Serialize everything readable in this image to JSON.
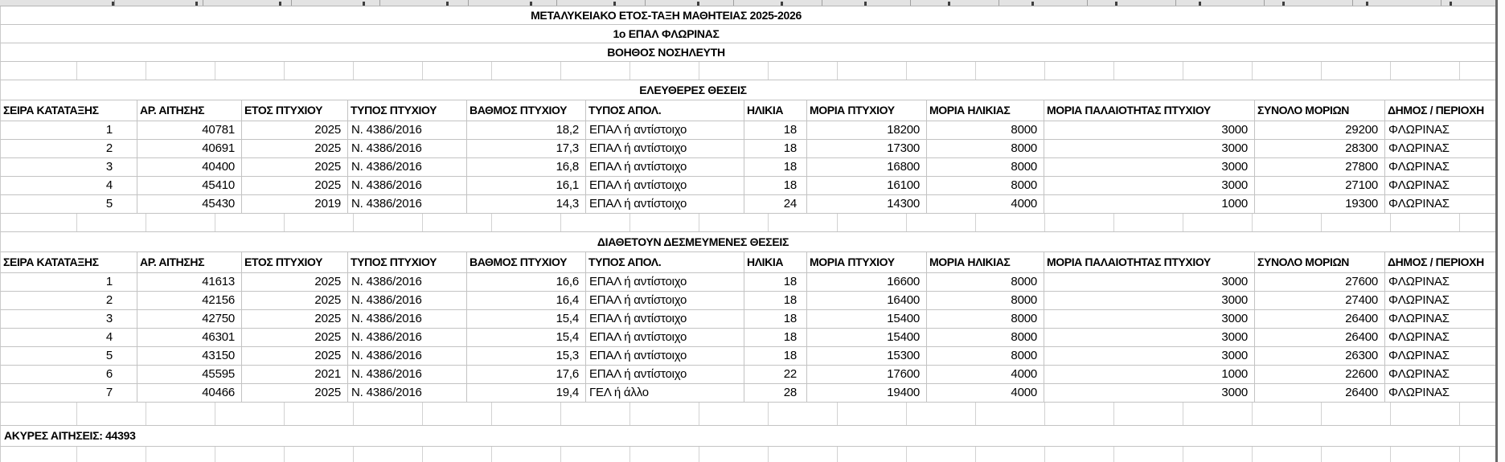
{
  "header": {
    "line1": "ΜΕΤΑΛΥΚΕΙΑΚΟ ΕΤΟΣ-ΤΑΞΗ ΜΑΘΗΤΕΙΑΣ 2025-2026",
    "line2": "1ο ΕΠΑΛ ΦΛΩΡΙΝΑΣ",
    "line3": "ΒΟΗΘΟΣ ΝΟΣΗΛΕΥΤΗ"
  },
  "columns": [
    "ΣΕΙΡΑ ΚΑΤΑΤΑΞΗΣ",
    "ΑΡ. ΑΙΤΗΣΗΣ",
    "ΕΤΟΣ ΠΤΥΧΙΟΥ",
    "ΤΥΠΟΣ ΠΤΥΧΙΟΥ",
    "ΒΑΘΜΟΣ ΠΤΥΧΙΟΥ",
    "ΤΥΠΟΣ ΑΠΟΛ.",
    "ΗΛΙΚΙΑ",
    "ΜΟΡΙΑ ΠΤΥΧΙΟΥ",
    "ΜΟΡΙΑ ΗΛΙΚΙΑΣ",
    "ΜΟΡΙΑ ΠΑΛΑΙΟΤΗΤΑΣ ΠΤΥΧΙΟΥ",
    "ΣΥΝΟΛΟ ΜΟΡΙΩΝ",
    "ΔΗΜΟΣ / ΠΕΡΙΟΧΗ"
  ],
  "sections": [
    {
      "title": "ΕΛΕΥΘΕΡΕΣ ΘΕΣΕΙΣ",
      "rows": [
        [
          "1",
          "40781",
          "2025",
          "N. 4386/2016",
          "18,2",
          "ΕΠΑΛ ή αντίστοιχο",
          "18",
          "18200",
          "8000",
          "3000",
          "29200",
          "ΦΛΩΡΙΝΑΣ"
        ],
        [
          "2",
          "40691",
          "2025",
          "N. 4386/2016",
          "17,3",
          "ΕΠΑΛ ή αντίστοιχο",
          "18",
          "17300",
          "8000",
          "3000",
          "28300",
          "ΦΛΩΡΙΝΑΣ"
        ],
        [
          "3",
          "40400",
          "2025",
          "N. 4386/2016",
          "16,8",
          "ΕΠΑΛ ή αντίστοιχο",
          "18",
          "16800",
          "8000",
          "3000",
          "27800",
          "ΦΛΩΡΙΝΑΣ"
        ],
        [
          "4",
          "45410",
          "2025",
          "N. 4386/2016",
          "16,1",
          "ΕΠΑΛ ή αντίστοιχο",
          "18",
          "16100",
          "8000",
          "3000",
          "27100",
          "ΦΛΩΡΙΝΑΣ"
        ],
        [
          "5",
          "45430",
          "2019",
          "N. 4386/2016",
          "14,3",
          "ΕΠΑΛ ή αντίστοιχο",
          "24",
          "14300",
          "4000",
          "1000",
          "19300",
          "ΦΛΩΡΙΝΑΣ"
        ]
      ]
    },
    {
      "title": "ΔΙΑΘΕΤΟΥΝ ΔΕΣΜΕΥΜΕΝΕΣ ΘΕΣΕΙΣ",
      "rows": [
        [
          "1",
          "41613",
          "2025",
          "N. 4386/2016",
          "16,6",
          "ΕΠΑΛ ή αντίστοιχο",
          "18",
          "16600",
          "8000",
          "3000",
          "27600",
          "ΦΛΩΡΙΝΑΣ"
        ],
        [
          "2",
          "42156",
          "2025",
          "N. 4386/2016",
          "16,4",
          "ΕΠΑΛ ή αντίστοιχο",
          "18",
          "16400",
          "8000",
          "3000",
          "27400",
          "ΦΛΩΡΙΝΑΣ"
        ],
        [
          "3",
          "42750",
          "2025",
          "N. 4386/2016",
          "15,4",
          "ΕΠΑΛ ή αντίστοιχο",
          "18",
          "15400",
          "8000",
          "3000",
          "26400",
          "ΦΛΩΡΙΝΑΣ"
        ],
        [
          "4",
          "46301",
          "2025",
          "N. 4386/2016",
          "15,4",
          "ΕΠΑΛ ή αντίστοιχο",
          "18",
          "15400",
          "8000",
          "3000",
          "26400",
          "ΦΛΩΡΙΝΑΣ"
        ],
        [
          "5",
          "43150",
          "2025",
          "N. 4386/2016",
          "15,3",
          "ΕΠΑΛ ή αντίστοιχο",
          "18",
          "15300",
          "8000",
          "3000",
          "26300",
          "ΦΛΩΡΙΝΑΣ"
        ],
        [
          "6",
          "45595",
          "2021",
          "N. 4386/2016",
          "17,6",
          "ΕΠΑΛ ή αντίστοιχο",
          "22",
          "17600",
          "4000",
          "1000",
          "22600",
          "ΦΛΩΡΙΝΑΣ"
        ],
        [
          "7",
          "40466",
          "2025",
          "N. 4386/2016",
          "19,4",
          "ΓΕΛ ή άλλο",
          "28",
          "19400",
          "4000",
          "3000",
          "26400",
          "ΦΛΩΡΙΝΑΣ"
        ]
      ]
    }
  ],
  "footer": {
    "invalid_note": "ΑΚΥΡΕΣ ΑΙΤΗΣΕΙΣ: 44393"
  },
  "colors": {
    "grid_border": "#c3c3c3",
    "page_edge_line": "#686868",
    "strip_background": "#e3e3e3"
  }
}
